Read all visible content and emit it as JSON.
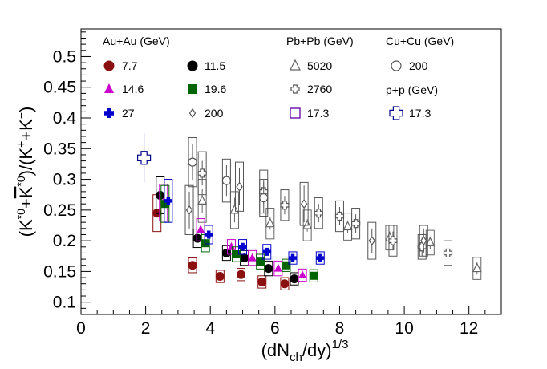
{
  "chart_data": {
    "type": "scatter",
    "xlabel": "(dN_ch/dy)^1/3",
    "ylabel": "(K*0+K̄*0)/(K++K−)",
    "xlim": [
      0,
      13.0
    ],
    "ylim": [
      0.08,
      0.545
    ],
    "x_ticks": [
      "0",
      "2",
      "4",
      "6",
      "8",
      "10",
      "12"
    ],
    "x_tick_values": [
      0,
      2,
      4,
      6,
      8,
      10,
      12
    ],
    "y_ticks": [
      "0.1",
      "0.15",
      "0.2",
      "0.25",
      "0.3",
      "0.35",
      "0.4",
      "0.45",
      "0.5"
    ],
    "y_tick_values": [
      0.1,
      0.15,
      0.2,
      0.25,
      0.3,
      0.35,
      0.4,
      0.45,
      0.5
    ],
    "legend_groups": [
      {
        "title": "Au+Au (GeV)"
      },
      {
        "title": "Pb+Pb (GeV)"
      },
      {
        "title": "Cu+Cu (GeV)"
      },
      {
        "title": "p+p (GeV)"
      }
    ],
    "series": [
      {
        "name": "7.7",
        "group": "Au+Au",
        "marker": "circle-filled",
        "color": "#8b1010",
        "points": [
          [
            2.35,
            0.245
          ],
          [
            3.45,
            0.16
          ],
          [
            4.3,
            0.142
          ],
          [
            4.95,
            0.145
          ],
          [
            5.6,
            0.133
          ],
          [
            6.3,
            0.13
          ]
        ],
        "yerr": [
          0.005,
          0.005,
          0.005,
          0.005,
          0.005,
          0.005
        ],
        "syst": [
          0.03,
          0.012,
          0.01,
          0.01,
          0.01,
          0.01
        ]
      },
      {
        "name": "11.5",
        "group": "Au+Au",
        "marker": "circle-filled",
        "color": "#000000",
        "points": [
          [
            2.45,
            0.274
          ],
          [
            3.6,
            0.204
          ],
          [
            4.5,
            0.18
          ],
          [
            5.05,
            0.172
          ],
          [
            5.8,
            0.155
          ],
          [
            6.6,
            0.138
          ]
        ],
        "yerr": [
          0.006,
          0.006,
          0.005,
          0.005,
          0.005,
          0.005
        ],
        "syst": [
          0.03,
          0.015,
          0.012,
          0.012,
          0.012,
          0.01
        ]
      },
      {
        "name": "14.6",
        "group": "Au+Au",
        "marker": "triangle-filled",
        "color": "#cc00cc",
        "points": [
          [
            2.55,
            0.262
          ],
          [
            3.7,
            0.218
          ],
          [
            4.65,
            0.19
          ],
          [
            5.3,
            0.172
          ],
          [
            6.1,
            0.155
          ],
          [
            6.85,
            0.144
          ]
        ],
        "yerr": [
          0.006,
          0.006,
          0.005,
          0.005,
          0.005,
          0.005
        ],
        "syst": [
          0.03,
          0.018,
          0.012,
          0.012,
          0.012,
          0.01
        ]
      },
      {
        "name": "19.6",
        "group": "Au+Au",
        "marker": "square-filled",
        "color": "#006400",
        "points": [
          [
            2.6,
            0.26
          ],
          [
            3.85,
            0.196
          ],
          [
            4.8,
            0.178
          ],
          [
            5.55,
            0.166
          ],
          [
            6.35,
            0.16
          ],
          [
            7.2,
            0.143
          ]
        ],
        "yerr": [
          0.006,
          0.005,
          0.005,
          0.005,
          0.005,
          0.005
        ],
        "syst": [
          0.03,
          0.014,
          0.012,
          0.012,
          0.01,
          0.01
        ]
      },
      {
        "name": "27",
        "group": "Au+Au",
        "marker": "cross-filled",
        "color": "#0000cc",
        "points": [
          [
            2.7,
            0.265
          ],
          [
            3.95,
            0.21
          ],
          [
            5.0,
            0.19
          ],
          [
            5.75,
            0.182
          ],
          [
            6.55,
            0.172
          ],
          [
            7.4,
            0.172
          ]
        ],
        "yerr": [
          0.006,
          0.005,
          0.005,
          0.005,
          0.005,
          0.005
        ],
        "syst": [
          0.035,
          0.015,
          0.012,
          0.012,
          0.01,
          0.01
        ]
      },
      {
        "name": "200",
        "group": "Au+Au",
        "marker": "diamond-open",
        "color": "#555555",
        "points": [
          [
            3.35,
            0.25
          ],
          [
            4.9,
            0.288
          ],
          [
            6.9,
            0.26
          ],
          [
            9.0,
            0.2
          ],
          [
            10.6,
            0.2
          ]
        ],
        "yerr": [
          0.03,
          0.03,
          0.03,
          0.02,
          0.02
        ],
        "syst": [
          0.04,
          0.04,
          0.035,
          0.03,
          0.025
        ]
      },
      {
        "name": "5020",
        "group": "Pb+Pb",
        "marker": "triangle-open",
        "color": "#666666",
        "points": [
          [
            3.75,
            0.265
          ],
          [
            4.75,
            0.25
          ],
          [
            5.85,
            0.228
          ],
          [
            7.0,
            0.225
          ],
          [
            8.25,
            0.223
          ],
          [
            9.55,
            0.205
          ],
          [
            10.8,
            0.197
          ],
          [
            12.25,
            0.155
          ]
        ],
        "yerr": [
          0.02,
          0.02,
          0.01,
          0.01,
          0.01,
          0.01,
          0.01,
          0.01
        ],
        "syst": [
          0.035,
          0.03,
          0.025,
          0.025,
          0.022,
          0.02,
          0.02,
          0.018
        ]
      },
      {
        "name": "2760",
        "group": "Pb+Pb",
        "marker": "cross-open",
        "color": "#555555",
        "points": [
          [
            3.75,
            0.31
          ],
          [
            5.65,
            0.28
          ],
          [
            6.3,
            0.258
          ],
          [
            7.35,
            0.245
          ],
          [
            8.0,
            0.24
          ],
          [
            8.5,
            0.228
          ],
          [
            9.65,
            0.2
          ],
          [
            10.55,
            0.19
          ],
          [
            11.35,
            0.18
          ]
        ],
        "yerr": [
          0.02,
          0.02,
          0.015,
          0.015,
          0.015,
          0.015,
          0.015,
          0.015,
          0.015
        ],
        "syst": [
          0.035,
          0.035,
          0.025,
          0.025,
          0.025,
          0.025,
          0.025,
          0.02,
          0.02
        ]
      },
      {
        "name": "17.3",
        "group": "Pb+Pb",
        "marker": "square-open",
        "color": "#6a0dad",
        "points": [],
        "yerr": [],
        "syst": []
      },
      {
        "name": "200",
        "group": "Cu+Cu",
        "marker": "circle-open",
        "color": "#555555",
        "points": [
          [
            3.45,
            0.328
          ],
          [
            4.5,
            0.298
          ],
          [
            5.65,
            0.27
          ]
        ],
        "yerr": [
          0.03,
          0.025,
          0.025
        ],
        "syst": [
          0.04,
          0.035,
          0.03
        ]
      },
      {
        "name": "17.3",
        "group": "p+p",
        "marker": "cross-open",
        "color": "#00008b",
        "points": [
          [
            1.95,
            0.335
          ]
        ],
        "yerr": [
          0.04
        ],
        "syst": [
          0.0
        ]
      }
    ]
  }
}
